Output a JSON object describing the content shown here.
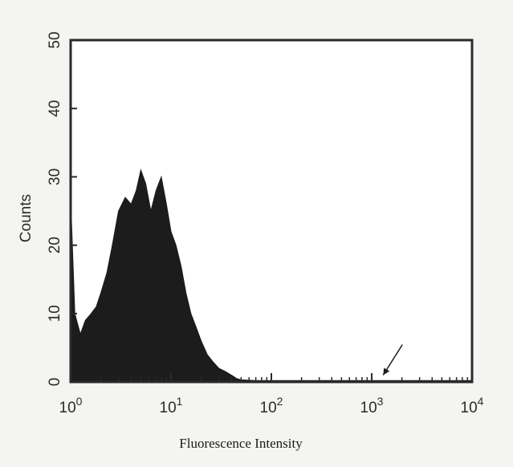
{
  "chart_data": {
    "type": "area",
    "title": "",
    "xlabel": "Fluorescence Intensity",
    "ylabel": "Counts",
    "x_scale": "log",
    "xlim": [
      1,
      10000
    ],
    "ylim": [
      0,
      50
    ],
    "x_ticks": [
      {
        "value": 1,
        "base": "10",
        "exp": "0"
      },
      {
        "value": 10,
        "base": "10",
        "exp": "1"
      },
      {
        "value": 100,
        "base": "10",
        "exp": "2"
      },
      {
        "value": 1000,
        "base": "10",
        "exp": "3"
      },
      {
        "value": 10000,
        "base": "10",
        "exp": "4"
      }
    ],
    "y_ticks": [
      0,
      10,
      20,
      30,
      40,
      50
    ],
    "grid": false,
    "legend": "none",
    "series": [
      {
        "x": [
          1.0,
          1.1,
          1.25,
          1.4,
          1.6,
          1.8,
          2.0,
          2.3,
          2.6,
          3.0,
          3.5,
          4.0,
          4.5,
          5.0,
          5.6,
          6.3,
          7.1,
          8.0,
          9.0,
          10.0,
          11.2,
          12.6,
          14.1,
          15.8,
          17.8,
          20.0,
          23.0,
          26.0,
          30.0,
          35.0,
          40.0,
          45.0,
          50.0,
          70.0,
          100.0,
          1000.0,
          10000.0
        ],
        "y": [
          27,
          10,
          7,
          9,
          10,
          11,
          13,
          16,
          20,
          25,
          27,
          26,
          28,
          31,
          29,
          25,
          28,
          30,
          26,
          22,
          20,
          17,
          13,
          10,
          8,
          6,
          4,
          3,
          2,
          1.5,
          1,
          0.5,
          0.3,
          0.2,
          0.2,
          0.2,
          0.2
        ]
      }
    ],
    "annotations": [
      {
        "type": "arrow",
        "x": 1300,
        "y": 1
      }
    ],
    "colors": {
      "fill": "#1c1c1c",
      "axis": "#2a2a2a",
      "background": "#ffffff"
    }
  }
}
